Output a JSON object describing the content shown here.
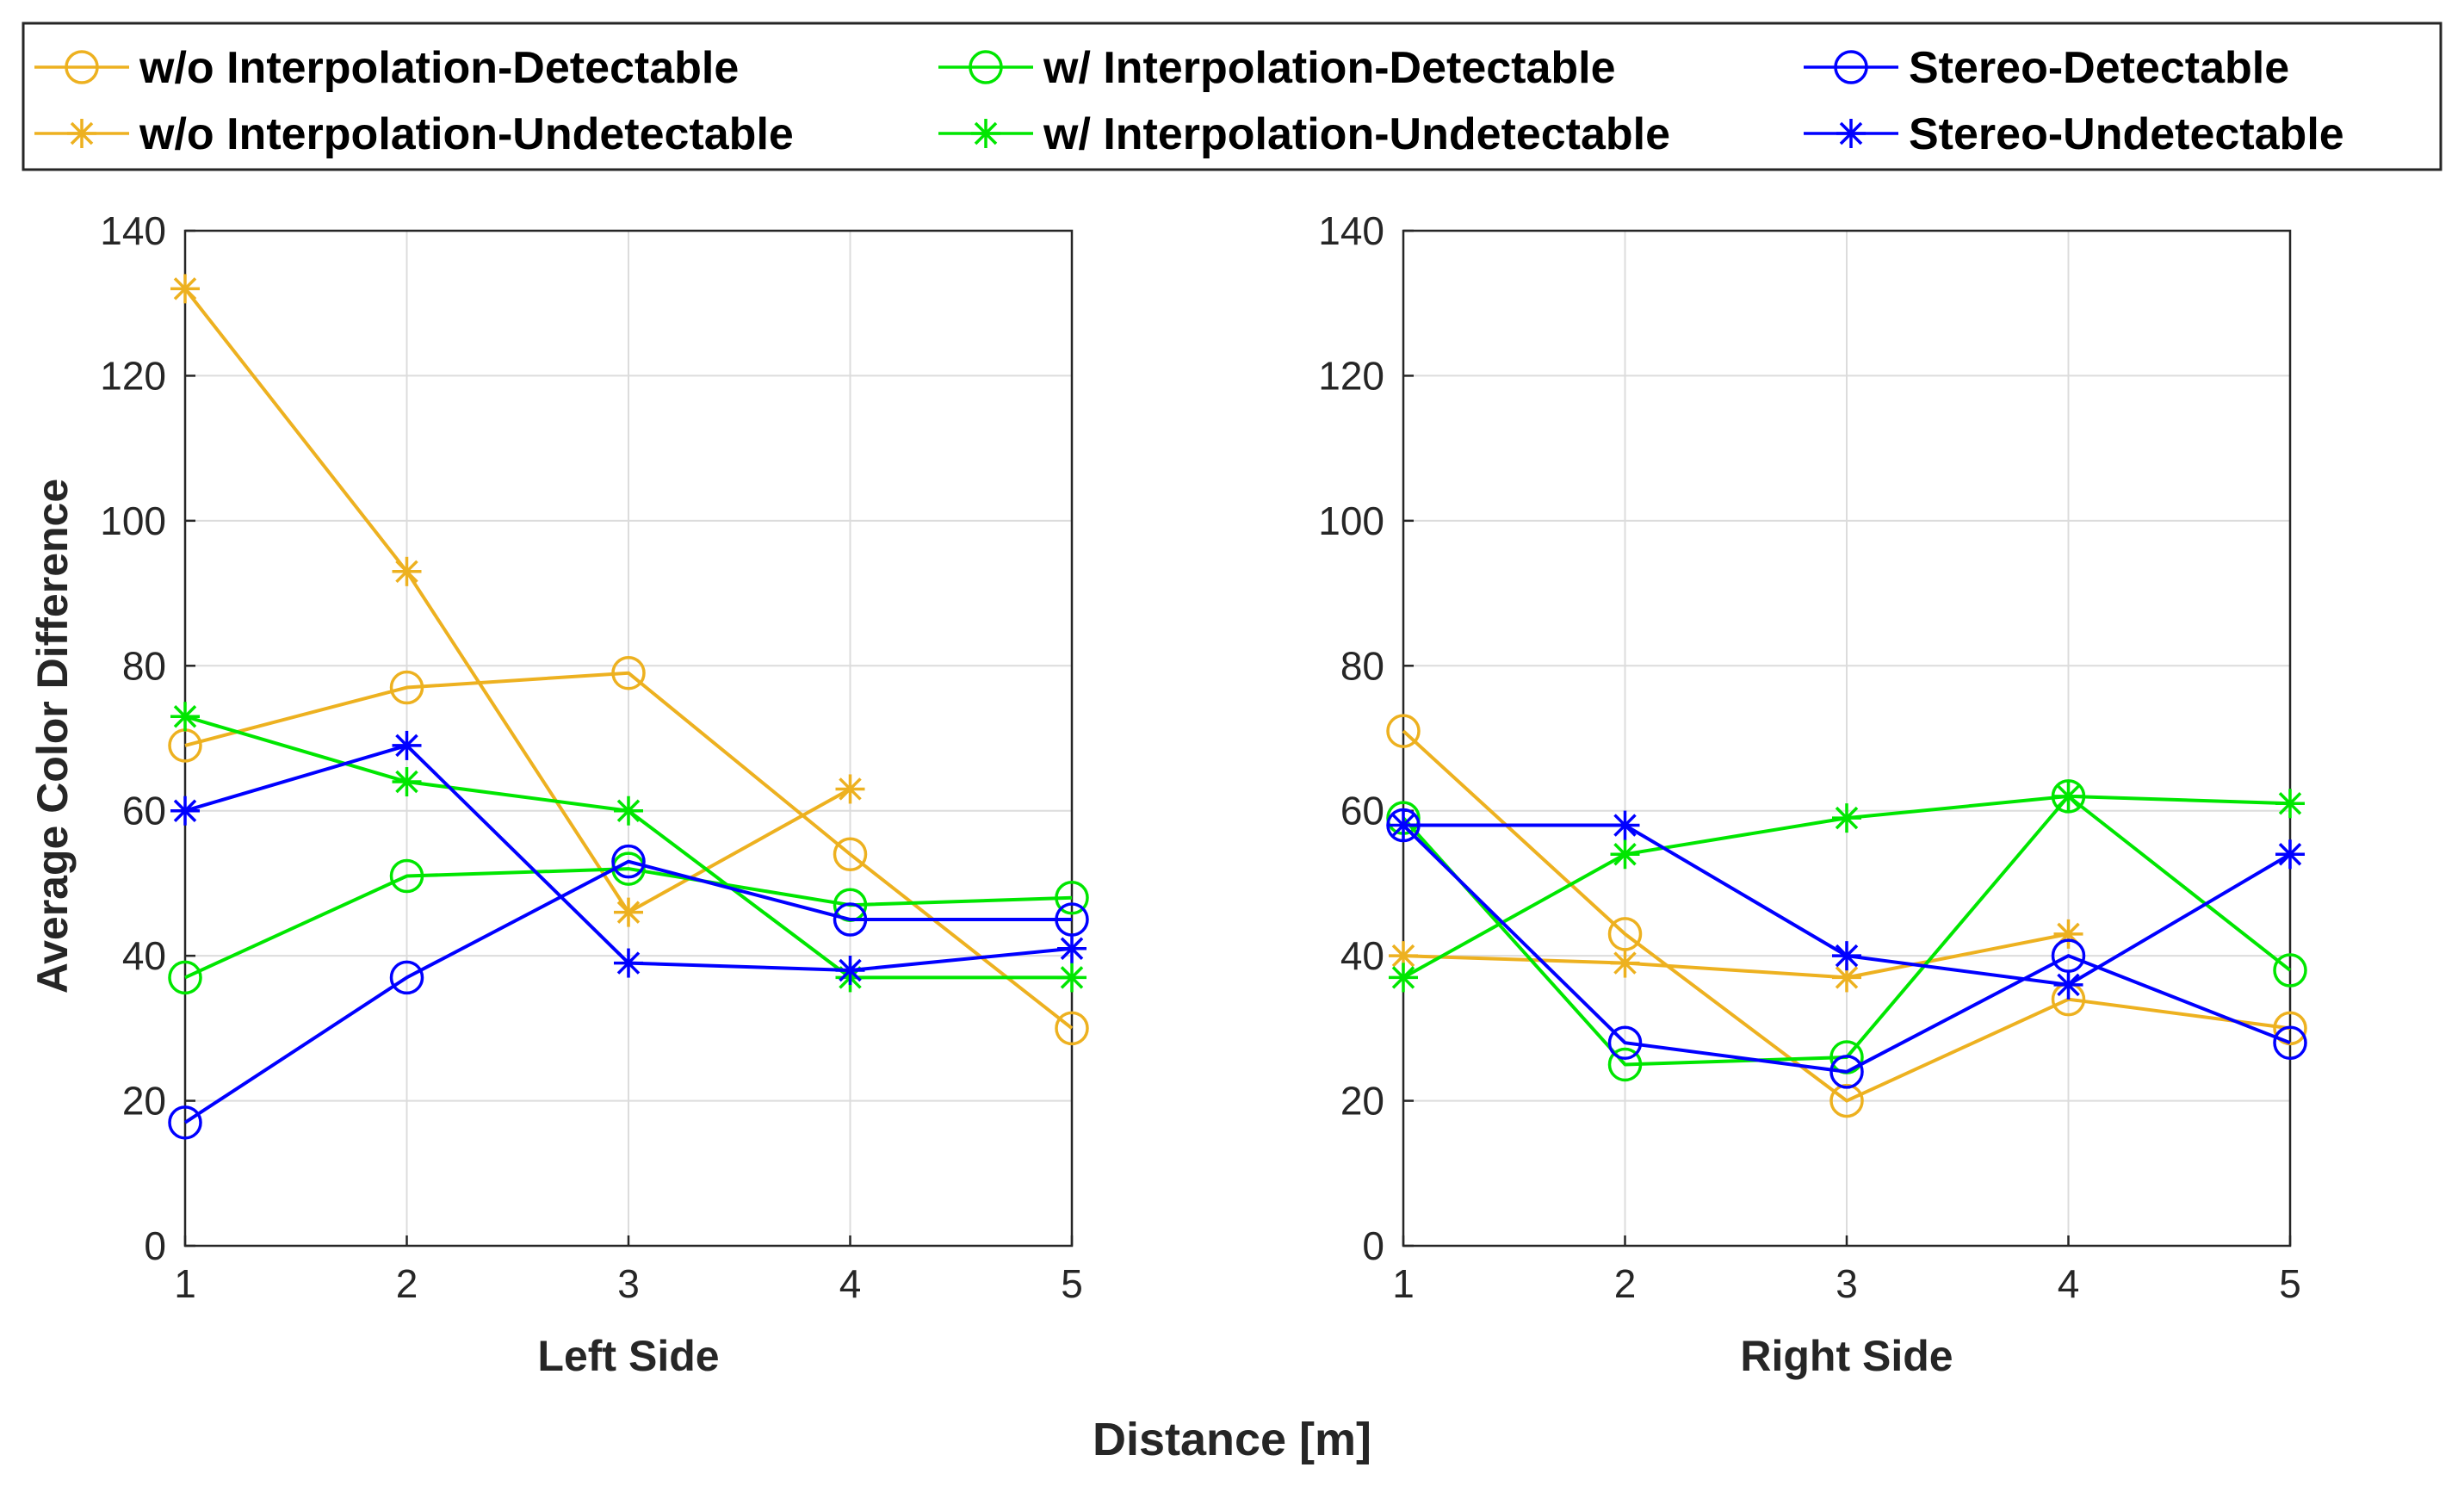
{
  "figure": {
    "shared_xlabel": "Distance [m]",
    "ylabel": "Average Color Difference"
  },
  "legend": [
    {
      "label": "w/o Interpolation-Detectable",
      "color": "#EDB120",
      "marker": "circle"
    },
    {
      "label": "w/ Interpolation-Detectable",
      "color": "#00E600",
      "marker": "circle"
    },
    {
      "label": "Stereo-Detectable",
      "color": "#0000FF",
      "marker": "circle"
    },
    {
      "label": "w/o Interpolation-Undetectable",
      "color": "#EDB120",
      "marker": "star"
    },
    {
      "label": "w/ Interpolation-Undetectable",
      "color": "#00E600",
      "marker": "star"
    },
    {
      "label": "Stereo-Undetectable",
      "color": "#0000FF",
      "marker": "star"
    }
  ],
  "chart_data": [
    {
      "type": "line",
      "title": "",
      "xlabel": "Left Side",
      "ylabel": "Average Color Difference",
      "x": [
        1,
        2,
        3,
        4,
        5
      ],
      "xticks": [
        "1",
        "2",
        "3",
        "4",
        "5"
      ],
      "yticks": [
        "0",
        "20",
        "40",
        "60",
        "80",
        "100",
        "120",
        "140"
      ],
      "xlim": [
        1,
        5
      ],
      "ylim": [
        0,
        140
      ],
      "grid": true,
      "series": [
        {
          "name": "w/o Interpolation-Detectable",
          "color": "#EDB120",
          "marker": "circle",
          "values": [
            69,
            77,
            79,
            54,
            30
          ]
        },
        {
          "name": "w/o Interpolation-Undetectable",
          "color": "#EDB120",
          "marker": "star",
          "values": [
            132,
            93,
            46,
            63,
            null
          ]
        },
        {
          "name": "w/ Interpolation-Detectable",
          "color": "#00E600",
          "marker": "circle",
          "values": [
            37,
            51,
            52,
            47,
            48
          ]
        },
        {
          "name": "w/ Interpolation-Undetectable",
          "color": "#00E600",
          "marker": "star",
          "values": [
            73,
            64,
            60,
            37,
            37
          ]
        },
        {
          "name": "Stereo-Detectable",
          "color": "#0000FF",
          "marker": "circle",
          "values": [
            17,
            37,
            53,
            45,
            45
          ]
        },
        {
          "name": "Stereo-Undetectable",
          "color": "#0000FF",
          "marker": "star",
          "values": [
            60,
            69,
            39,
            38,
            41
          ]
        }
      ]
    },
    {
      "type": "line",
      "title": "",
      "xlabel": "Right Side",
      "ylabel": "",
      "x": [
        1,
        2,
        3,
        4,
        5
      ],
      "xticks": [
        "1",
        "2",
        "3",
        "4",
        "5"
      ],
      "yticks": [
        "0",
        "20",
        "40",
        "60",
        "80",
        "100",
        "120",
        "140"
      ],
      "xlim": [
        1,
        5
      ],
      "ylim": [
        0,
        140
      ],
      "grid": true,
      "series": [
        {
          "name": "w/o Interpolation-Detectable",
          "color": "#EDB120",
          "marker": "circle",
          "values": [
            71,
            43,
            20,
            34,
            30
          ]
        },
        {
          "name": "w/o Interpolation-Undetectable",
          "color": "#EDB120",
          "marker": "star",
          "values": [
            40,
            39,
            37,
            43,
            null
          ]
        },
        {
          "name": "w/ Interpolation-Detectable",
          "color": "#00E600",
          "marker": "circle",
          "values": [
            59,
            25,
            26,
            62,
            38
          ]
        },
        {
          "name": "w/ Interpolation-Undetectable",
          "color": "#00E600",
          "marker": "star",
          "values": [
            37,
            54,
            59,
            62,
            61
          ]
        },
        {
          "name": "Stereo-Detectable",
          "color": "#0000FF",
          "marker": "circle",
          "values": [
            58,
            28,
            24,
            40,
            28
          ]
        },
        {
          "name": "Stereo-Undetectable",
          "color": "#0000FF",
          "marker": "star",
          "values": [
            58,
            58,
            40,
            36,
            54
          ]
        }
      ]
    }
  ]
}
